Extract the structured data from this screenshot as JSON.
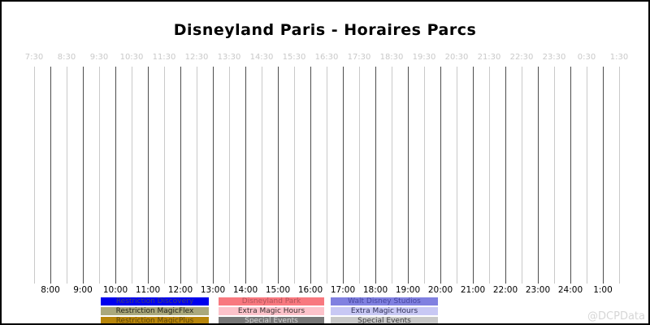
{
  "title": "Disneyland Paris - Horaires Parcs",
  "watermark": "@DCPData",
  "axis": {
    "top_ticks": [
      "7:30",
      "8:30",
      "9:30",
      "10:30",
      "11:30",
      "12:30",
      "13:30",
      "14:30",
      "15:30",
      "16:30",
      "17:30",
      "18:30",
      "19:30",
      "20:30",
      "21:30",
      "22:30",
      "23:30",
      "0:30",
      "1:30"
    ],
    "bottom_ticks": [
      "8:00",
      "9:00",
      "10:00",
      "11:00",
      "12:00",
      "13:00",
      "14:00",
      "15:00",
      "16:00",
      "17:00",
      "18:00",
      "19:00",
      "20:00",
      "21:00",
      "22:00",
      "23:00",
      "24:00",
      "1:00"
    ]
  },
  "grid": {
    "hour_line_color": "#4d4d4d",
    "half_hour_line_color": "#c9c9c9",
    "line_count": 37
  },
  "legend": {
    "columns": [
      {
        "items": [
          {
            "label": "Restriction Discovery",
            "bg": "#0000ee",
            "fg": "#3f3f73"
          },
          {
            "label": "Restriction MagicFlex",
            "bg": "#aaa87c",
            "fg": "#26261a"
          },
          {
            "label": "Restriction MagicPlus",
            "bg": "#b8860b",
            "fg": "#5f4505"
          }
        ]
      },
      {
        "items": [
          {
            "label": "Disneyland Park",
            "bg": "#f8787f",
            "fg": "#b2545a"
          },
          {
            "label": "Extra Magic Hours",
            "bg": "#fcc2ca",
            "fg": "#3a2e30"
          },
          {
            "label": "Special Events",
            "bg": "#787878",
            "fg": "#d2d2d2"
          }
        ]
      },
      {
        "items": [
          {
            "label": "Walt Disney Studios",
            "bg": "#8080e0",
            "fg": "#4646a0"
          },
          {
            "label": "Extra Magic Hours",
            "bg": "#c8c8f4",
            "fg": "#31315a"
          },
          {
            "label": "Special Events",
            "bg": "#c8c8c8",
            "fg": "#3c3c3c"
          }
        ]
      }
    ]
  },
  "chart_data": {
    "type": "gantt",
    "title": "Disneyland Paris - Horaires Parcs",
    "xlabel": "",
    "ylabel": "",
    "x_axis": {
      "range_start": "7:30",
      "range_end": "1:30",
      "top_tick_labels": [
        "7:30",
        "8:30",
        "9:30",
        "10:30",
        "11:30",
        "12:30",
        "13:30",
        "14:30",
        "15:30",
        "16:30",
        "17:30",
        "18:30",
        "19:30",
        "20:30",
        "21:30",
        "22:30",
        "23:30",
        "0:30",
        "1:30"
      ],
      "bottom_tick_labels": [
        "8:00",
        "9:00",
        "10:00",
        "11:00",
        "12:00",
        "13:00",
        "14:00",
        "15:00",
        "16:00",
        "17:00",
        "18:00",
        "19:00",
        "20:00",
        "21:00",
        "22:00",
        "23:00",
        "24:00",
        "1:00"
      ],
      "major_grid": "hourly, dark gray",
      "minor_grid": "half-hourly, light gray",
      "grid_on": true
    },
    "legend_position": "bottom",
    "legend_entries": [
      {
        "label": "Restriction Discovery",
        "color": "#0000ee"
      },
      {
        "label": "Restriction MagicFlex",
        "color": "#aaa87c"
      },
      {
        "label": "Restriction MagicPlus",
        "color": "#b8860b"
      },
      {
        "label": "Disneyland Park",
        "color": "#f8787f"
      },
      {
        "label": "Extra Magic Hours",
        "color": "#fcc2ca"
      },
      {
        "label": "Special Events",
        "color": "#787878"
      },
      {
        "label": "Walt Disney Studios",
        "color": "#8080e0"
      },
      {
        "label": "Extra Magic Hours",
        "color": "#c8c8f4"
      },
      {
        "label": "Special Events",
        "color": "#c8c8c8"
      }
    ],
    "series": []
  }
}
